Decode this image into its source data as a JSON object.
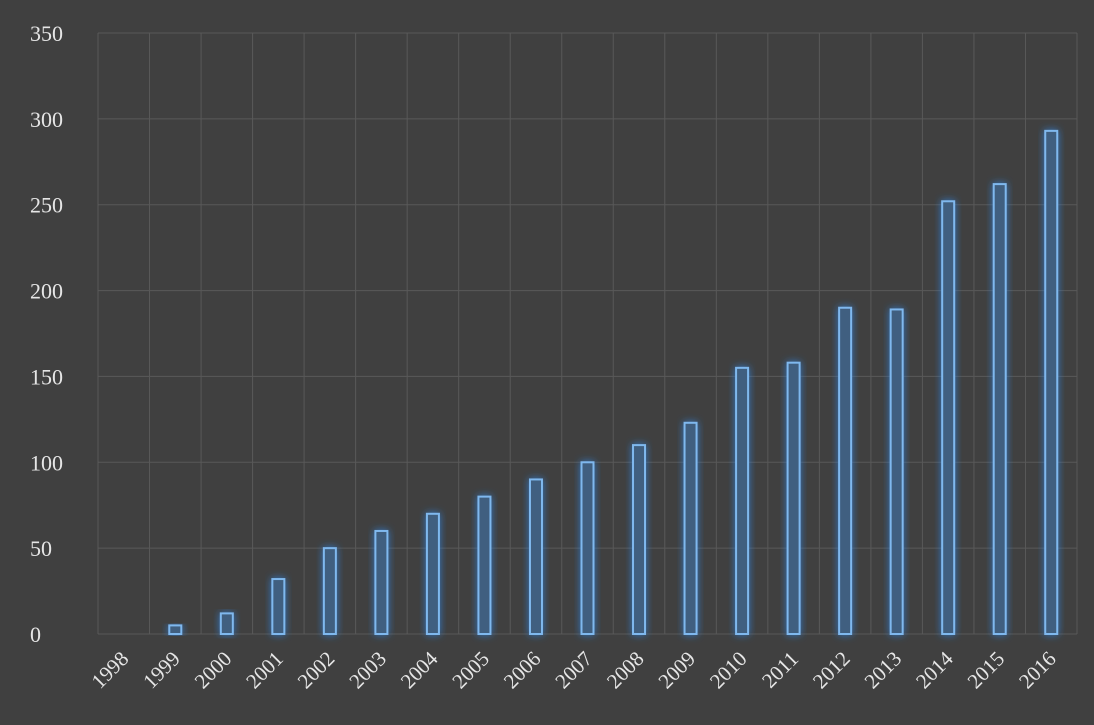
{
  "colors": {
    "background": "#404040",
    "gridline": "#595959",
    "bar_fill": "#3f5f80",
    "bar_stroke": "#7fb8ee",
    "bar_glow": "#2f7fd6",
    "text": "#e6e6e6"
  },
  "chart_data": {
    "type": "bar",
    "categories": [
      "1998",
      "1999",
      "2000",
      "2001",
      "2002",
      "2003",
      "2004",
      "2005",
      "2006",
      "2007",
      "2008",
      "2009",
      "2010",
      "2011",
      "2012",
      "2013",
      "2014",
      "2015",
      "2016"
    ],
    "values": [
      0,
      5,
      12,
      32,
      50,
      60,
      70,
      80,
      90,
      100,
      110,
      123,
      155,
      158,
      190,
      189,
      252,
      262,
      293
    ],
    "title": "",
    "xlabel": "",
    "ylabel": "",
    "ylim": [
      0,
      350
    ],
    "yticks": [
      "0",
      "50",
      "100",
      "150",
      "200",
      "250",
      "300",
      "350"
    ],
    "grid": true,
    "x_tick_rotation": "diagonal"
  }
}
